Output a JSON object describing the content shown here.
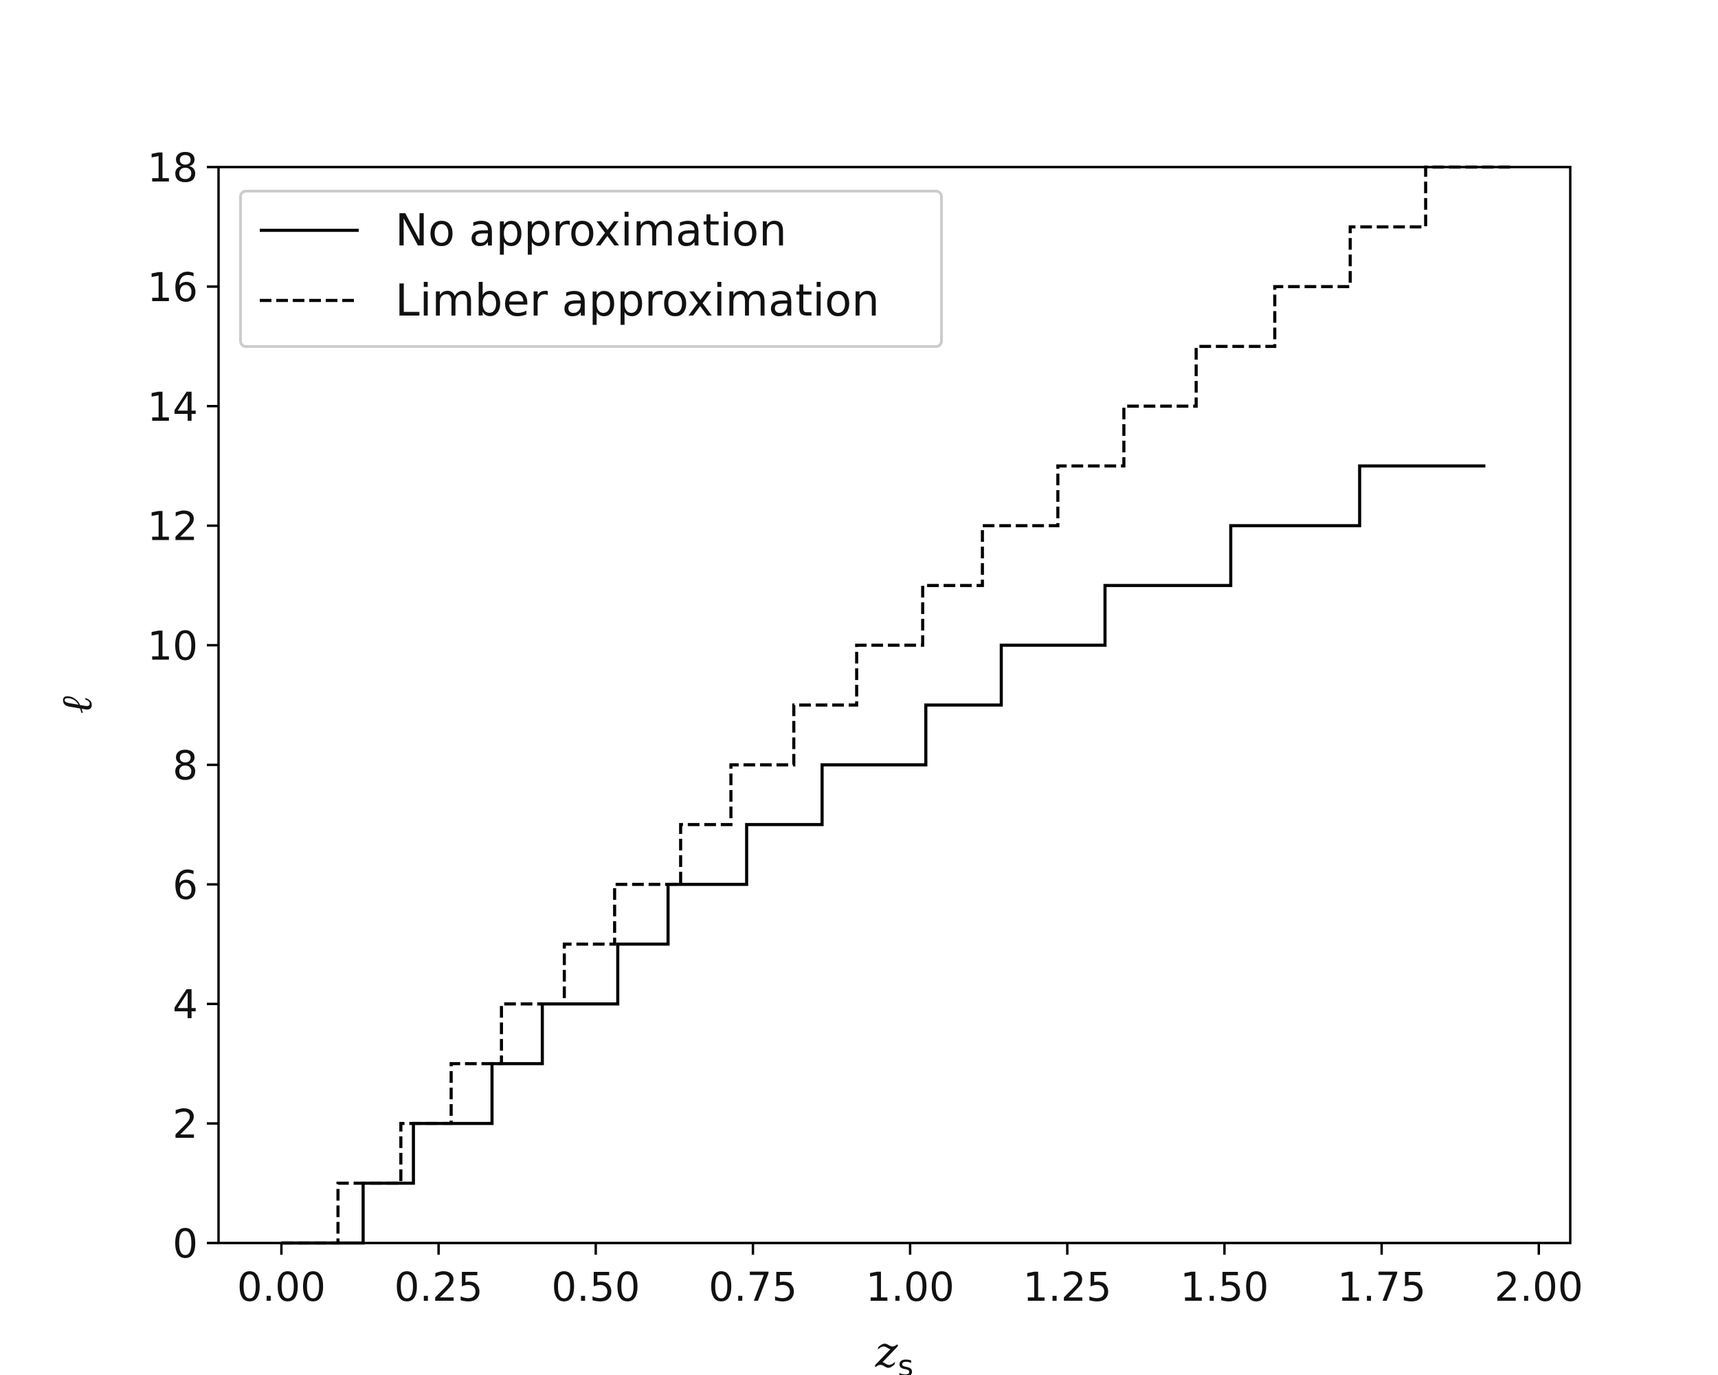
{
  "chart_data": {
    "type": "line",
    "drawstyle": "step",
    "title": "",
    "xlabel": {
      "main": "z",
      "sub": "s"
    },
    "ylabel": "ℓ",
    "xlim": [
      -0.1,
      2.05
    ],
    "ylim": [
      0,
      18
    ],
    "xticks": [
      0.0,
      0.25,
      0.5,
      0.75,
      1.0,
      1.25,
      1.5,
      1.75,
      2.0
    ],
    "xtick_labels": [
      "0.00",
      "0.25",
      "0.50",
      "0.75",
      "1.00",
      "1.25",
      "1.50",
      "1.75",
      "2.00"
    ],
    "yticks": [
      0,
      2,
      4,
      6,
      8,
      10,
      12,
      14,
      16,
      18
    ],
    "ytick_labels": [
      "0",
      "2",
      "4",
      "6",
      "8",
      "10",
      "12",
      "14",
      "16",
      "18"
    ],
    "grid": false,
    "legend_position": "top-left",
    "series": [
      {
        "name": "No approximation",
        "style": "solid",
        "color": "#000000",
        "steps": [
          {
            "x": 0.0,
            "y": 0
          },
          {
            "x": 0.13,
            "y": 1
          },
          {
            "x": 0.21,
            "y": 2
          },
          {
            "x": 0.335,
            "y": 3
          },
          {
            "x": 0.415,
            "y": 4
          },
          {
            "x": 0.535,
            "y": 5
          },
          {
            "x": 0.615,
            "y": 6
          },
          {
            "x": 0.74,
            "y": 7
          },
          {
            "x": 0.86,
            "y": 8
          },
          {
            "x": 1.025,
            "y": 9
          },
          {
            "x": 1.145,
            "y": 10
          },
          {
            "x": 1.31,
            "y": 11
          },
          {
            "x": 1.51,
            "y": 12
          },
          {
            "x": 1.715,
            "y": 13
          }
        ],
        "x_end": 1.915
      },
      {
        "name": "Limber approximation",
        "style": "dashed",
        "color": "#000000",
        "steps": [
          {
            "x": 0.0,
            "y": 0
          },
          {
            "x": 0.09,
            "y": 1
          },
          {
            "x": 0.19,
            "y": 2
          },
          {
            "x": 0.27,
            "y": 3
          },
          {
            "x": 0.35,
            "y": 4
          },
          {
            "x": 0.45,
            "y": 5
          },
          {
            "x": 0.53,
            "y": 6
          },
          {
            "x": 0.635,
            "y": 7
          },
          {
            "x": 0.715,
            "y": 8
          },
          {
            "x": 0.815,
            "y": 9
          },
          {
            "x": 0.915,
            "y": 10
          },
          {
            "x": 1.02,
            "y": 11
          },
          {
            "x": 1.115,
            "y": 12
          },
          {
            "x": 1.235,
            "y": 13
          },
          {
            "x": 1.34,
            "y": 14
          },
          {
            "x": 1.455,
            "y": 15
          },
          {
            "x": 1.58,
            "y": 16
          },
          {
            "x": 1.7,
            "y": 17
          },
          {
            "x": 1.82,
            "y": 18
          }
        ],
        "x_end": 1.96
      }
    ]
  }
}
